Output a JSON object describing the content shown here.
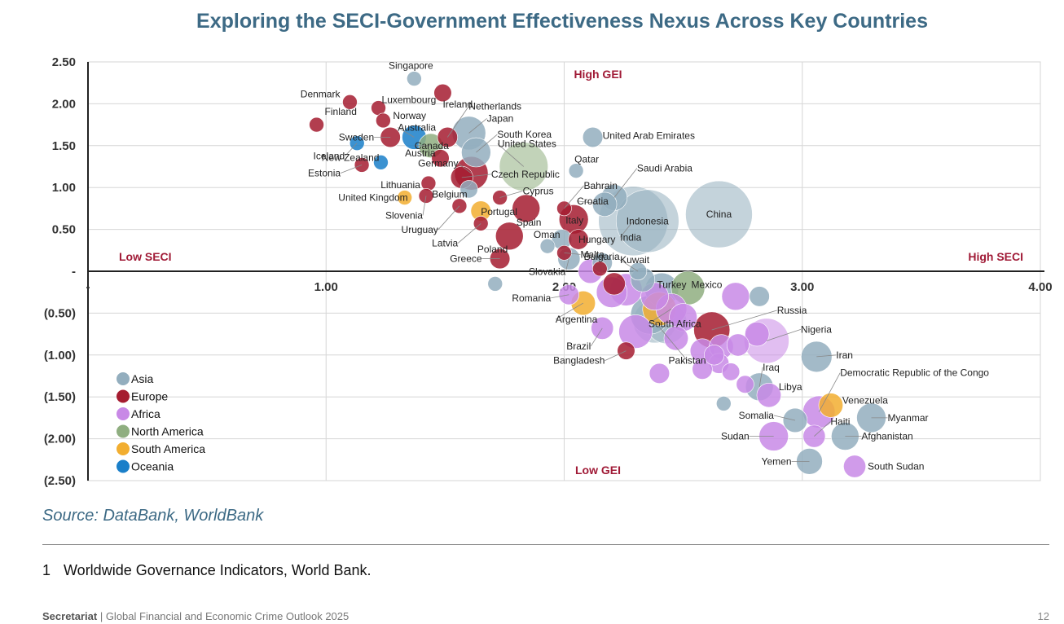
{
  "title": "Exploring the SECI-Government Effectiveness Nexus Across Key Countries",
  "source": "Source: DataBank, WorldBank",
  "footnote": {
    "number": "1",
    "text": "Worldwide Governance Indicators, World Bank."
  },
  "footer": {
    "brand": "Secretariat",
    "text": " | Global Financial and Economic Crime Outlook 2025"
  },
  "page_number": "12",
  "colors": {
    "Asia": "#93aebe",
    "Europe": "#a51c30",
    "Africa": "#c889e6",
    "North America": "#8fae80",
    "South America": "#f2ae30",
    "Oceania": "#1a7fc9"
  },
  "chart_data": {
    "type": "scatter",
    "title": "Exploring the SECI-Government Effectiveness Nexus Across Key Countries",
    "xlim": [
      0,
      4
    ],
    "ylim": [
      -2.5,
      2.5
    ],
    "x_ticks": [
      {
        "value": 1,
        "label": "1.00"
      },
      {
        "value": 2,
        "label": "2.00"
      },
      {
        "value": 3,
        "label": "3.00"
      },
      {
        "value": 4,
        "label": "4.00"
      }
    ],
    "y_ticks": [
      {
        "value": 2.5,
        "label": "2.50"
      },
      {
        "value": 2,
        "label": "2.00"
      },
      {
        "value": 1.5,
        "label": "1.50"
      },
      {
        "value": 1,
        "label": "1.00"
      },
      {
        "value": 0.5,
        "label": "0.50"
      },
      {
        "value": 0,
        "label": "-"
      },
      {
        "value": -0.5,
        "label": "(0.50)"
      },
      {
        "value": -1,
        "label": "(1.00)"
      },
      {
        "value": -1.5,
        "label": "(1.50)"
      },
      {
        "value": -2,
        "label": "(2.00)"
      },
      {
        "value": -2.5,
        "label": "(2.50)"
      }
    ],
    "origin_x_label": "-",
    "grid": true,
    "legend_position": "bottom-left",
    "quadrant_labels": {
      "top": "High GEI",
      "bottom": "Low GEI",
      "left": "Low SECI",
      "right": "High SECI"
    },
    "series": [
      {
        "name": "Asia",
        "color": "#93aebe"
      },
      {
        "name": "Europe",
        "color": "#a51c30"
      },
      {
        "name": "Africa",
        "color": "#c889e6"
      },
      {
        "name": "North America",
        "color": "#8fae80"
      },
      {
        "name": "South America",
        "color": "#f2ae30"
      },
      {
        "name": "Oceania",
        "color": "#1a7fc9"
      }
    ],
    "points": [
      {
        "name": "Singapore",
        "region": "Asia",
        "x": 1.37,
        "y": 2.3,
        "size": 1
      },
      {
        "name": "Denmark",
        "region": "Europe",
        "x": 1.1,
        "y": 2.02,
        "size": 1
      },
      {
        "name": "Luxembourg",
        "region": "Europe",
        "x": 1.22,
        "y": 1.95,
        "size": 1
      },
      {
        "name": "Finland",
        "region": "Europe",
        "x": 0.96,
        "y": 1.75,
        "size": 1
      },
      {
        "name": "Norway",
        "region": "Europe",
        "x": 1.24,
        "y": 1.8,
        "size": 1
      },
      {
        "name": "Ireland",
        "region": "Europe",
        "x": 1.49,
        "y": 2.13,
        "size": 1.5
      },
      {
        "name": "Netherlands",
        "region": "Europe",
        "x": 1.51,
        "y": 1.6,
        "size": 2
      },
      {
        "name": "Japan",
        "region": "Asia",
        "x": 1.6,
        "y": 1.65,
        "size": 6
      },
      {
        "name": "Sweden",
        "region": "Europe",
        "x": 1.27,
        "y": 1.6,
        "size": 2
      },
      {
        "name": "Australia",
        "region": "Oceania",
        "x": 1.37,
        "y": 1.6,
        "size": 3
      },
      {
        "name": "Iceland",
        "region": "Oceania",
        "x": 1.13,
        "y": 1.53,
        "size": 1
      },
      {
        "name": "Canada",
        "region": "North America",
        "x": 1.44,
        "y": 1.5,
        "size": 3
      },
      {
        "name": "South Korea",
        "region": "Asia",
        "x": 1.63,
        "y": 1.42,
        "size": 4.5
      },
      {
        "name": "Austria",
        "region": "Europe",
        "x": 1.48,
        "y": 1.35,
        "size": 1.5
      },
      {
        "name": "New Zealand",
        "region": "Oceania",
        "x": 1.23,
        "y": 1.3,
        "size": 1
      },
      {
        "name": "Germany",
        "region": "Europe",
        "x": 1.61,
        "y": 1.17,
        "size": 6
      },
      {
        "name": "United States",
        "region": "North America",
        "x": 1.83,
        "y": 1.25,
        "size": 13
      },
      {
        "name": "Estonia",
        "region": "Europe",
        "x": 1.15,
        "y": 1.27,
        "size": 1
      },
      {
        "name": "Lithuania",
        "region": "Europe",
        "x": 1.43,
        "y": 1.05,
        "size": 1
      },
      {
        "name": "Czech Republic",
        "region": "Europe",
        "x": 1.57,
        "y": 1.12,
        "size": 2.5
      },
      {
        "name": "United Kingdom",
        "region": "South America",
        "x": 1.33,
        "y": 0.88,
        "size": 1
      },
      {
        "name": "Belgium",
        "region": "Asia",
        "x": 1.6,
        "y": 0.98,
        "size": 1.5
      },
      {
        "name": "Slovenia",
        "region": "Europe",
        "x": 1.42,
        "y": 0.9,
        "size": 1
      },
      {
        "name": "Cyprus",
        "region": "Europe",
        "x": 1.73,
        "y": 0.88,
        "size": 1
      },
      {
        "name": "Portugal",
        "region": "South America",
        "x": 1.65,
        "y": 0.72,
        "size": 2
      },
      {
        "name": "Uruguay",
        "region": "Europe",
        "x": 1.56,
        "y": 0.78,
        "size": 1
      },
      {
        "name": "Spain",
        "region": "Europe",
        "x": 1.84,
        "y": 0.75,
        "size": 4
      },
      {
        "name": "Italy",
        "region": "Europe",
        "x": 2.04,
        "y": 0.62,
        "size": 4.5
      },
      {
        "name": "Latvia",
        "region": "Europe",
        "x": 1.65,
        "y": 0.57,
        "size": 1
      },
      {
        "name": "Poland",
        "region": "Europe",
        "x": 1.77,
        "y": 0.42,
        "size": 4
      },
      {
        "name": "Oman",
        "region": "Asia",
        "x": 1.99,
        "y": 0.38,
        "size": 2
      },
      {
        "name": "Greece",
        "region": "Europe",
        "x": 1.73,
        "y": 0.15,
        "size": 2
      },
      {
        "name": "Slovakia",
        "region": "Asia",
        "x": 2.02,
        "y": 0.15,
        "size": 2.5
      },
      {
        "name": "Qatar",
        "region": "Asia",
        "x": 2.05,
        "y": 1.2,
        "size": 1
      },
      {
        "name": "United Arab Emirates",
        "region": "Asia",
        "x": 2.12,
        "y": 1.6,
        "size": 2
      },
      {
        "name": "Bahrain",
        "region": "Europe",
        "x": 2.0,
        "y": 0.75,
        "size": 1
      },
      {
        "name": "Saudi Arabia",
        "region": "Asia",
        "x": 2.21,
        "y": 0.88,
        "size": 3.5
      },
      {
        "name": "Croatia",
        "region": "Asia",
        "x": 2.17,
        "y": 0.8,
        "size": 3
      },
      {
        "name": "Hungary",
        "region": "Europe",
        "x": 2.06,
        "y": 0.38,
        "size": 2
      },
      {
        "name": "Malta",
        "region": "Europe",
        "x": 2.0,
        "y": 0.22,
        "size": 1
      },
      {
        "name": "Indonesia",
        "region": "Asia",
        "x": 2.35,
        "y": 0.6,
        "size": 22
      },
      {
        "name": "India",
        "region": "Asia",
        "x": 2.29,
        "y": 0.6,
        "size": 27
      },
      {
        "name": "China",
        "region": "Asia",
        "x": 2.65,
        "y": 0.68,
        "size": 25
      },
      {
        "name": "Bulgaria",
        "region": "Africa",
        "x": 2.11,
        "y": 0.0,
        "size": 3
      },
      {
        "name": "Kuwait",
        "region": "Asia",
        "x": 2.31,
        "y": 0.0,
        "size": 1.5
      },
      {
        "name": "Romania",
        "region": "Africa",
        "x": 2.02,
        "y": -0.28,
        "size": 2
      },
      {
        "name": "Turkey",
        "region": "Asia",
        "x": 2.41,
        "y": -0.22,
        "size": 6
      },
      {
        "name": "Mexico",
        "region": "North America",
        "x": 2.52,
        "y": -0.2,
        "size": 6
      },
      {
        "name": "Argentina",
        "region": "South America",
        "x": 2.08,
        "y": -0.38,
        "size": 3
      },
      {
        "name": "South Africa",
        "region": "Africa",
        "x": 2.45,
        "y": -0.45,
        "size": 5
      },
      {
        "name": "Brazil",
        "region": "Africa",
        "x": 2.16,
        "y": -0.68,
        "size": 2.5
      },
      {
        "name": "Russia",
        "region": "Europe",
        "x": 2.62,
        "y": -0.7,
        "size": 7
      },
      {
        "name": "Nigeria",
        "region": "Africa",
        "x": 2.85,
        "y": -0.83,
        "size": 11
      },
      {
        "name": "Bangladesh",
        "region": "Europe",
        "x": 2.26,
        "y": -0.95,
        "size": 1.5
      },
      {
        "name": "Pakistan",
        "region": "Asia",
        "x": 2.38,
        "y": -0.6,
        "size": 10
      },
      {
        "name": "Iran",
        "region": "Asia",
        "x": 3.06,
        "y": -1.02,
        "size": 5
      },
      {
        "name": "Iraq",
        "region": "Asia",
        "x": 2.82,
        "y": -1.38,
        "size": 4
      },
      {
        "name": "Libya",
        "region": "Africa",
        "x": 2.86,
        "y": -1.48,
        "size": 3
      },
      {
        "name": "Democratic Republic of the Congo",
        "region": "Africa",
        "x": 3.07,
        "y": -1.68,
        "size": 5.5
      },
      {
        "name": "Venezuela",
        "region": "South America",
        "x": 3.12,
        "y": -1.6,
        "size": 3
      },
      {
        "name": "Somalia",
        "region": "Asia",
        "x": 2.97,
        "y": -1.78,
        "size": 3
      },
      {
        "name": "Myanmar",
        "region": "Asia",
        "x": 3.29,
        "y": -1.75,
        "size": 4.5
      },
      {
        "name": "Sudan",
        "region": "Africa",
        "x": 2.88,
        "y": -1.97,
        "size": 4.5
      },
      {
        "name": "Afghanistan",
        "region": "Asia",
        "x": 3.18,
        "y": -1.97,
        "size": 4
      },
      {
        "name": "Haiti",
        "region": "Africa",
        "x": 3.05,
        "y": -1.97,
        "size": 2.5
      },
      {
        "name": "Yemen",
        "region": "Asia",
        "x": 3.03,
        "y": -2.27,
        "size": 3.5
      },
      {
        "name": "South Sudan",
        "region": "Africa",
        "x": 3.22,
        "y": -2.33,
        "size": 2.5
      }
    ],
    "unlabeled_points": [
      {
        "region": "Asia",
        "x": 1.71,
        "y": -0.15,
        "size": 1
      },
      {
        "region": "Africa",
        "x": 2.2,
        "y": -0.25,
        "size": 5
      },
      {
        "region": "Africa",
        "x": 2.26,
        "y": -0.22,
        "size": 5.5
      },
      {
        "region": "Asia",
        "x": 2.33,
        "y": -0.1,
        "size": 3
      },
      {
        "region": "Africa",
        "x": 2.38,
        "y": -0.3,
        "size": 4
      },
      {
        "region": "Asia",
        "x": 2.36,
        "y": -0.52,
        "size": 8
      },
      {
        "region": "Asia",
        "x": 2.43,
        "y": -0.62,
        "size": 9
      },
      {
        "region": "South America",
        "x": 2.4,
        "y": -0.45,
        "size": 6
      },
      {
        "region": "Africa",
        "x": 2.3,
        "y": -0.72,
        "size": 6
      },
      {
        "region": "Africa",
        "x": 2.5,
        "y": -0.55,
        "size": 4
      },
      {
        "region": "Africa",
        "x": 2.47,
        "y": -0.8,
        "size": 3
      },
      {
        "region": "Africa",
        "x": 2.58,
        "y": -0.95,
        "size": 3
      },
      {
        "region": "Africa",
        "x": 2.66,
        "y": -0.9,
        "size": 3
      },
      {
        "region": "Africa",
        "x": 2.73,
        "y": -0.88,
        "size": 2.5
      },
      {
        "region": "Africa",
        "x": 2.72,
        "y": -0.3,
        "size": 4
      },
      {
        "region": "Asia",
        "x": 2.82,
        "y": -0.3,
        "size": 2
      },
      {
        "region": "Africa",
        "x": 2.65,
        "y": -1.1,
        "size": 2
      },
      {
        "region": "Africa",
        "x": 2.58,
        "y": -1.17,
        "size": 2
      },
      {
        "region": "Africa",
        "x": 2.4,
        "y": -1.22,
        "size": 2
      },
      {
        "region": "Africa",
        "x": 2.76,
        "y": -1.35,
        "size": 1.5
      },
      {
        "region": "Africa",
        "x": 2.7,
        "y": -1.2,
        "size": 1.5
      },
      {
        "region": "Africa",
        "x": 2.81,
        "y": -0.75,
        "size": 3
      },
      {
        "region": "Asia",
        "x": 2.67,
        "y": -1.58,
        "size": 1
      },
      {
        "region": "Africa",
        "x": 2.63,
        "y": -1.0,
        "size": 2
      },
      {
        "region": "Asia",
        "x": 1.93,
        "y": 0.3,
        "size": 1
      },
      {
        "region": "Europe",
        "x": 2.21,
        "y": -0.15,
        "size": 2.5
      },
      {
        "region": "Asia",
        "x": 2.16,
        "y": 0.1,
        "size": 2
      },
      {
        "region": "Europe",
        "x": 2.15,
        "y": 0.03,
        "size": 1
      }
    ]
  }
}
